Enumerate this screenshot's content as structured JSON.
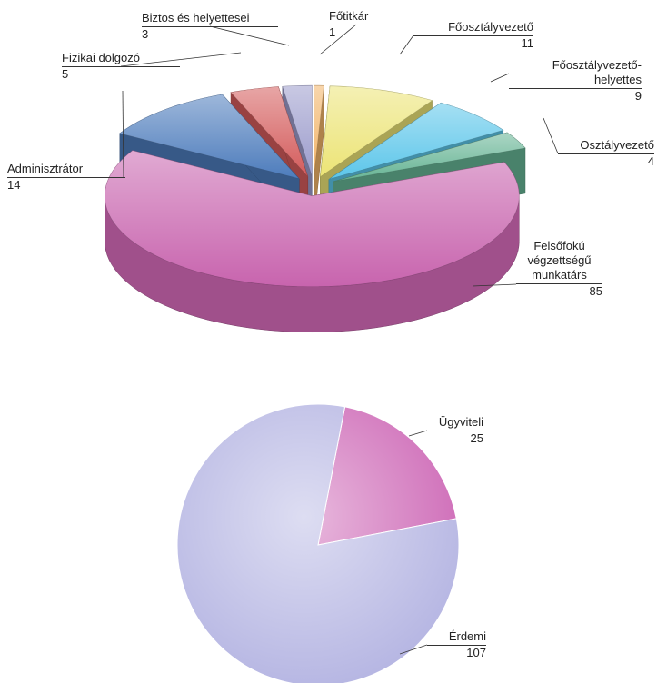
{
  "chart_data": [
    {
      "type": "pie3d",
      "categories": [
        "Főtitkár",
        "Főosztályvezető",
        "Főosztályvezető-helyettes",
        "Osztályvezető",
        "Felsőfokú végzettségű munkatárs",
        "Adminisztrátor",
        "Fizikai dolgozó",
        "Biztos és helyettesei"
      ],
      "values": [
        1,
        11,
        9,
        4,
        85,
        14,
        5,
        3
      ],
      "colors": [
        "#f2b468",
        "#ece476",
        "#5cc6ea",
        "#66b494",
        "#c864ae",
        "#4d7cbc",
        "#d45c5c",
        "#9c9ccc"
      ]
    },
    {
      "type": "pie",
      "categories": [
        "Ügyviteli",
        "Érdemi"
      ],
      "values": [
        25,
        107
      ],
      "colors": [
        "#cc64b4",
        "#b4b4e2"
      ]
    }
  ]
}
